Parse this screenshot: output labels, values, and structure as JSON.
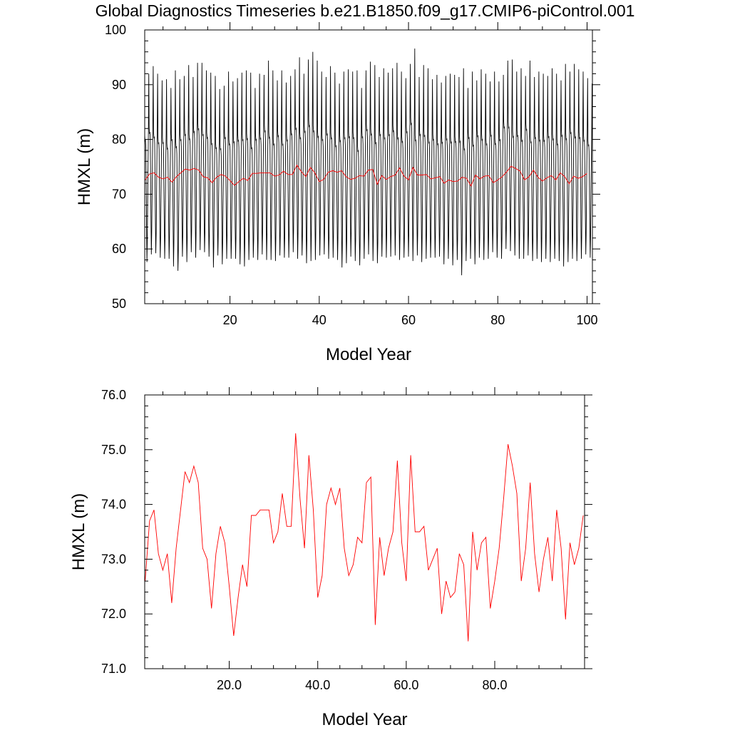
{
  "title": "Global Diagnostics Timeseries b.e21.B1850.f09_g17.CMIP6-piControl.001",
  "colors": {
    "monthly": "#000000",
    "annual": "#ff0000",
    "axis": "#000000"
  },
  "chart_data": [
    {
      "type": "line",
      "xlabel": "Model Year",
      "ylabel": "HMXL (m)",
      "xlim": [
        0.9,
        101.2
      ],
      "ylim": [
        50,
        100
      ],
      "xticks": [
        20,
        40,
        60,
        80,
        100
      ],
      "xtick_labels": [
        "20",
        "40",
        "60",
        "80",
        "100"
      ],
      "yticks": [
        50,
        60,
        70,
        80,
        90,
        100
      ],
      "ytick_labels": [
        "50",
        "60",
        "70",
        "80",
        "90",
        "100"
      ],
      "series": [
        {
          "key": "monthly",
          "color": "#000000",
          "description_cycle": "monthly values with seasonal cycle",
          "annual_peak": [
            92.0,
            93.4,
            92.0,
            90.8,
            91.0,
            89.4,
            92.6,
            91.0,
            91.6,
            93.6,
            91.4,
            94.0,
            94.0,
            92.6,
            92.2,
            91.6,
            89.2,
            89.8,
            92.4,
            90.6,
            91.2,
            92.2,
            92.6,
            92.2,
            89.4,
            92.0,
            91.8,
            94.4,
            92.6,
            90.8,
            92.6,
            90.4,
            91.6,
            92.8,
            95.0,
            92.0,
            94.6,
            96.0,
            94.4,
            92.4,
            91.4,
            93.4,
            92.2,
            90.2,
            92.4,
            92.8,
            92.4,
            92.6,
            89.4,
            92.6,
            94.2,
            93.6,
            91.4,
            93.0,
            92.2,
            93.0,
            94.0,
            92.4,
            91.2,
            93.8,
            96.6,
            91.4,
            93.6,
            93.0,
            91.0,
            91.8,
            90.4,
            91.6,
            92.0,
            91.8,
            91.4,
            93.0,
            89.4,
            92.4,
            90.8,
            92.8,
            92.0,
            90.6,
            92.4,
            90.6,
            91.8,
            94.4,
            94.6,
            92.4,
            93.0,
            91.6,
            94.4,
            91.4,
            92.4,
            92.0,
            91.6,
            93.0,
            92.0,
            90.8,
            93.8,
            92.4,
            93.8,
            92.8,
            92.4,
            91.2,
            90.2
          ],
          "annual_trough": [
            57.6,
            59.0,
            59.2,
            58.4,
            58.2,
            58.2,
            56.8,
            56.0,
            58.6,
            57.6,
            59.4,
            58.4,
            59.8,
            59.4,
            58.6,
            56.6,
            58.8,
            57.2,
            58.2,
            58.2,
            58.2,
            57.2,
            56.8,
            58.0,
            58.4,
            58.0,
            59.0,
            58.0,
            58.0,
            57.8,
            58.8,
            58.4,
            58.4,
            59.4,
            58.2,
            58.8,
            57.4,
            57.8,
            58.0,
            58.8,
            59.0,
            58.2,
            58.4,
            58.0,
            56.6,
            57.4,
            58.6,
            57.8,
            57.0,
            58.2,
            59.0,
            57.8,
            57.4,
            58.6,
            58.4,
            58.6,
            58.8,
            58.0,
            58.4,
            58.6,
            57.8,
            58.8,
            57.6,
            58.2,
            58.4,
            58.4,
            58.6,
            57.2,
            58.2,
            57.0,
            58.0,
            55.2,
            57.8,
            58.2,
            57.2,
            58.4,
            58.0,
            58.2,
            59.4,
            58.4,
            58.2,
            60.0,
            59.6,
            58.8,
            58.2,
            58.2,
            58.8,
            57.8,
            58.2,
            57.6,
            58.2,
            57.6,
            58.2,
            57.8,
            56.8,
            57.6,
            58.2,
            57.8,
            58.2,
            59.0,
            58.4
          ]
        },
        {
          "key": "annual",
          "color": "#ff0000",
          "x": [
            1,
            2,
            3,
            4,
            5,
            6,
            7,
            8,
            9,
            10,
            11,
            12,
            13,
            14,
            15,
            16,
            17,
            18,
            19,
            20,
            21,
            22,
            23,
            24,
            25,
            26,
            27,
            28,
            29,
            30,
            31,
            32,
            33,
            34,
            35,
            36,
            37,
            38,
            39,
            40,
            41,
            42,
            43,
            44,
            45,
            46,
            47,
            48,
            49,
            50,
            51,
            52,
            53,
            54,
            55,
            56,
            57,
            58,
            59,
            60,
            61,
            62,
            63,
            64,
            65,
            66,
            67,
            68,
            69,
            70,
            71,
            72,
            73,
            74,
            75,
            76,
            77,
            78,
            79,
            80,
            81,
            82,
            83,
            84,
            85,
            86,
            87,
            88,
            89,
            90,
            91,
            92,
            93,
            94,
            95,
            96,
            97,
            98,
            99,
            100
          ],
          "values": [
            72.6,
            73.7,
            73.9,
            73.1,
            72.8,
            73.1,
            72.2,
            73.2,
            73.9,
            74.6,
            74.4,
            74.7,
            74.4,
            73.2,
            73.0,
            72.1,
            73.1,
            73.6,
            73.3,
            72.5,
            71.6,
            72.3,
            72.9,
            72.5,
            73.8,
            73.8,
            73.9,
            73.9,
            73.9,
            73.3,
            73.5,
            74.2,
            73.6,
            73.6,
            75.3,
            74.1,
            73.2,
            74.9,
            73.9,
            72.3,
            72.7,
            74.0,
            74.3,
            74.0,
            74.3,
            73.2,
            72.7,
            72.9,
            73.4,
            73.3,
            74.4,
            74.5,
            71.8,
            73.4,
            72.7,
            73.2,
            73.5,
            74.8,
            73.3,
            72.6,
            74.9,
            73.5,
            73.5,
            73.6,
            72.8,
            73.0,
            73.2,
            72.0,
            72.6,
            72.3,
            72.4,
            73.1,
            72.9,
            71.5,
            73.5,
            72.8,
            73.3,
            73.4,
            72.1,
            72.6,
            73.2,
            74.1,
            75.1,
            74.7,
            74.2,
            72.6,
            73.2,
            74.4,
            73.1,
            72.4,
            73.0,
            73.4,
            72.6,
            73.9,
            73.2,
            71.9,
            73.3,
            72.9,
            73.2,
            73.8
          ]
        }
      ]
    },
    {
      "type": "line",
      "xlabel": "Model Year",
      "ylabel": "HMXL (m)",
      "xlim": [
        0.9,
        100.3
      ],
      "ylim": [
        71.0,
        76.0
      ],
      "xticks": [
        20,
        40,
        60,
        80
      ],
      "xtick_labels": [
        "20.0",
        "40.0",
        "60.0",
        "80.0"
      ],
      "yticks": [
        71,
        72,
        73,
        74,
        75,
        76
      ],
      "ytick_labels": [
        "71.0",
        "72.0",
        "73.0",
        "74.0",
        "75.0",
        "76.0"
      ],
      "series": [
        {
          "key": "annual",
          "color": "#ff0000",
          "x": [
            1,
            2,
            3,
            4,
            5,
            6,
            7,
            8,
            9,
            10,
            11,
            12,
            13,
            14,
            15,
            16,
            17,
            18,
            19,
            20,
            21,
            22,
            23,
            24,
            25,
            26,
            27,
            28,
            29,
            30,
            31,
            32,
            33,
            34,
            35,
            36,
            37,
            38,
            39,
            40,
            41,
            42,
            43,
            44,
            45,
            46,
            47,
            48,
            49,
            50,
            51,
            52,
            53,
            54,
            55,
            56,
            57,
            58,
            59,
            60,
            61,
            62,
            63,
            64,
            65,
            66,
            67,
            68,
            69,
            70,
            71,
            72,
            73,
            74,
            75,
            76,
            77,
            78,
            79,
            80,
            81,
            82,
            83,
            84,
            85,
            86,
            87,
            88,
            89,
            90,
            91,
            92,
            93,
            94,
            95,
            96,
            97,
            98,
            99,
            100
          ],
          "values": [
            72.6,
            73.7,
            73.9,
            73.1,
            72.8,
            73.1,
            72.2,
            73.2,
            73.9,
            74.6,
            74.4,
            74.7,
            74.4,
            73.2,
            73.0,
            72.1,
            73.1,
            73.6,
            73.3,
            72.5,
            71.6,
            72.3,
            72.9,
            72.5,
            73.8,
            73.8,
            73.9,
            73.9,
            73.9,
            73.3,
            73.5,
            74.2,
            73.6,
            73.6,
            75.3,
            74.1,
            73.2,
            74.9,
            73.9,
            72.3,
            72.7,
            74.0,
            74.3,
            74.0,
            74.3,
            73.2,
            72.7,
            72.9,
            73.4,
            73.3,
            74.4,
            74.5,
            71.8,
            73.4,
            72.7,
            73.2,
            73.5,
            74.8,
            73.3,
            72.6,
            74.9,
            73.5,
            73.5,
            73.6,
            72.8,
            73.0,
            73.2,
            72.0,
            72.6,
            72.3,
            72.4,
            73.1,
            72.9,
            71.5,
            73.5,
            72.8,
            73.3,
            73.4,
            72.1,
            72.6,
            73.2,
            74.1,
            75.1,
            74.7,
            74.2,
            72.6,
            73.2,
            74.4,
            73.1,
            72.4,
            73.0,
            73.4,
            72.6,
            73.9,
            73.2,
            71.9,
            73.3,
            72.9,
            73.2,
            73.8
          ]
        }
      ]
    }
  ]
}
